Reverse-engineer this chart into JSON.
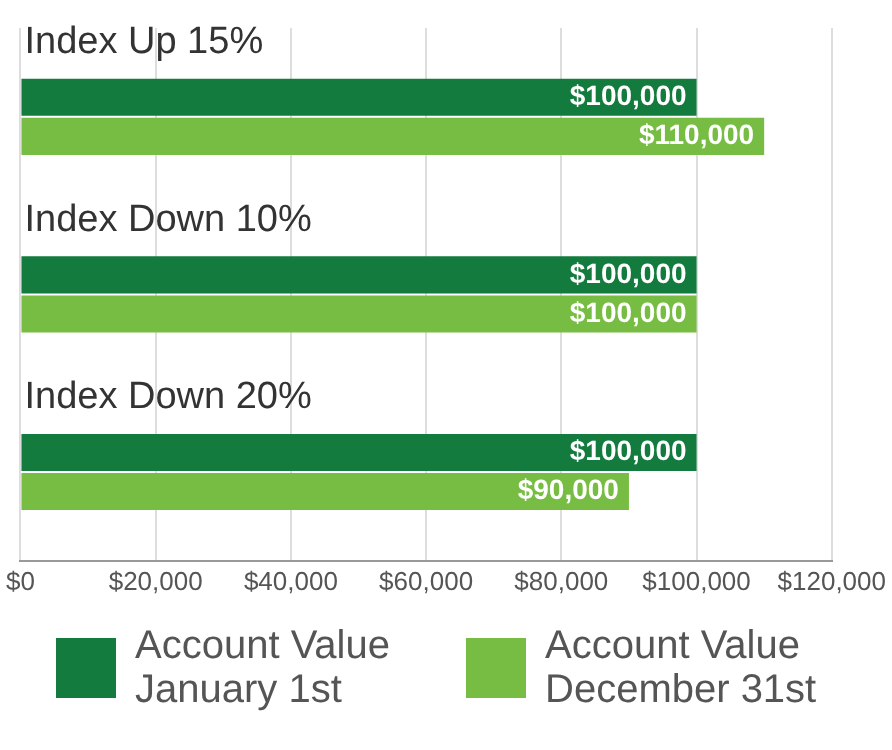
{
  "chart_data": {
    "type": "bar",
    "orientation": "horizontal",
    "categories": [
      "Index Up 15%",
      "Index Down 10%",
      "Index Down 20%"
    ],
    "series": [
      {
        "name": "Account Value January 1st",
        "color": "#137b3d",
        "values": [
          100000,
          100000,
          100000
        ],
        "value_labels": [
          "$100,000",
          "$100,000",
          "$100,000"
        ]
      },
      {
        "name": "Account Value December 31st",
        "color": "#78bd43",
        "values": [
          110000,
          100000,
          90000
        ],
        "value_labels": [
          "$110,000",
          "$100,000",
          "$90,000"
        ]
      }
    ],
    "xlim": [
      0,
      120000
    ],
    "xticks": [
      {
        "value": 0,
        "label": "$0"
      },
      {
        "value": 20000,
        "label": "$20,000"
      },
      {
        "value": 40000,
        "label": "$40,000"
      },
      {
        "value": 60000,
        "label": "$60,000"
      },
      {
        "value": 80000,
        "label": "$80,000"
      },
      {
        "value": 100000,
        "label": "$100,000"
      },
      {
        "value": 120000,
        "label": "$120,000"
      }
    ],
    "grid": "x",
    "legend": "bottom"
  }
}
